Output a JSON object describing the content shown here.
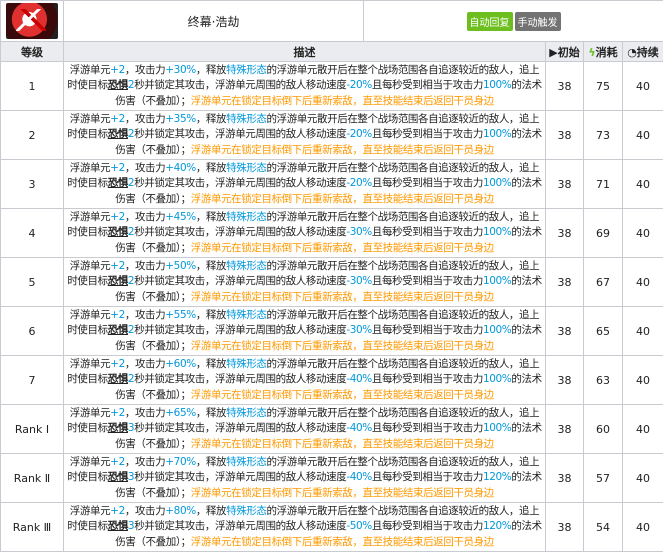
{
  "skill": {
    "name": "终幕·浩劫",
    "icon": "skill-icon",
    "tags": [
      {
        "label": "自动回复",
        "color": "#6cbf1e"
      },
      {
        "label": "手动触发",
        "color": "#737373"
      }
    ]
  },
  "headers": {
    "level": "等级",
    "desc": "描述",
    "initial": "初始",
    "cost": "消耗",
    "duration": "持续",
    "initial_icon": "play-icon",
    "cost_icon": "lightning-icon",
    "duration_icon": "clock-icon"
  },
  "text": {
    "t1": "浮游单元",
    "t2": "，攻击力",
    "t3": "，释放",
    "special": "特殊形态",
    "t4": "的浮游单元散开后在整个战场范围各自追逐较近的敌人，追上时使目标",
    "fear": "恐惧",
    "t5": "秒并锁定其攻击，浮游单元周围的敌人移动速度",
    "t6": "且每秒受到相当于攻击力",
    "t7": "的法术伤害（不叠加）；",
    "orange": "浮游单元在锁定目标倒下后重新索敌，直至技能结束后返回干员身边",
    "units": "+2"
  },
  "colors": {
    "blue": "#0098dc",
    "orange": "#ff9900"
  },
  "rows": [
    {
      "level": "1",
      "atk": "+30%",
      "fear": "2",
      "slow": "-20%",
      "dmg": "100%",
      "initial": "38",
      "cost": "75",
      "duration": "40"
    },
    {
      "level": "2",
      "atk": "+35%",
      "fear": "2",
      "slow": "-20%",
      "dmg": "100%",
      "initial": "38",
      "cost": "73",
      "duration": "40"
    },
    {
      "level": "3",
      "atk": "+40%",
      "fear": "2",
      "slow": "-20%",
      "dmg": "100%",
      "initial": "38",
      "cost": "71",
      "duration": "40"
    },
    {
      "level": "4",
      "atk": "+45%",
      "fear": "2",
      "slow": "-30%",
      "dmg": "100%",
      "initial": "38",
      "cost": "69",
      "duration": "40"
    },
    {
      "level": "5",
      "atk": "+50%",
      "fear": "2",
      "slow": "-30%",
      "dmg": "100%",
      "initial": "38",
      "cost": "67",
      "duration": "40"
    },
    {
      "level": "6",
      "atk": "+55%",
      "fear": "2",
      "slow": "-30%",
      "dmg": "100%",
      "initial": "38",
      "cost": "65",
      "duration": "40"
    },
    {
      "level": "7",
      "atk": "+60%",
      "fear": "2",
      "slow": "-40%",
      "dmg": "100%",
      "initial": "38",
      "cost": "63",
      "duration": "40"
    },
    {
      "level": "Rank Ⅰ",
      "atk": "+65%",
      "fear": "3",
      "slow": "-40%",
      "dmg": "100%",
      "initial": "38",
      "cost": "60",
      "duration": "40"
    },
    {
      "level": "Rank Ⅱ",
      "atk": "+70%",
      "fear": "3",
      "slow": "-40%",
      "dmg": "120%",
      "initial": "38",
      "cost": "57",
      "duration": "40"
    },
    {
      "level": "Rank Ⅲ",
      "atk": "+80%",
      "fear": "3",
      "slow": "-50%",
      "dmg": "120%",
      "initial": "38",
      "cost": "54",
      "duration": "40"
    }
  ]
}
